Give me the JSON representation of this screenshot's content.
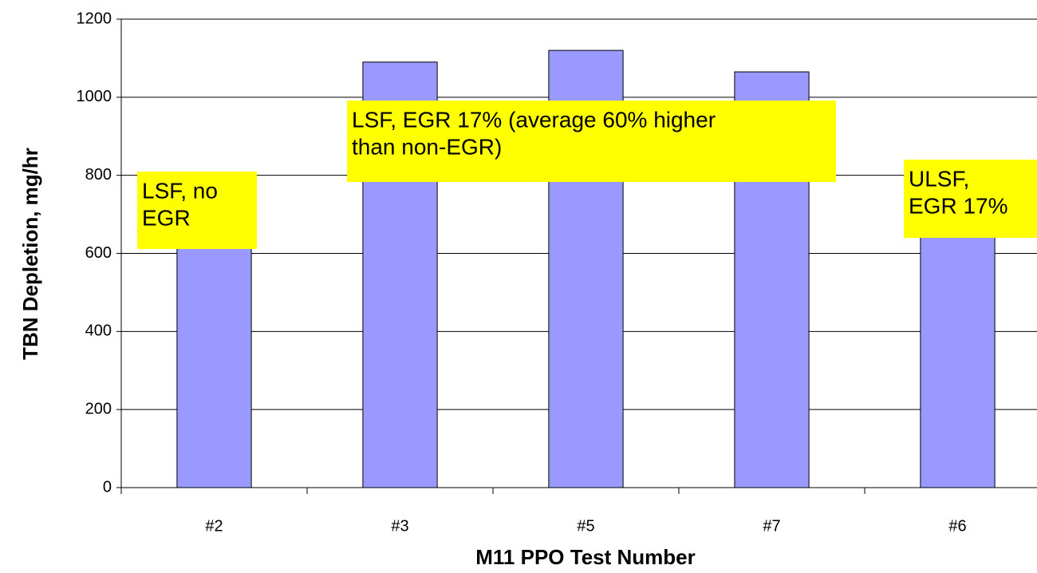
{
  "chart_data": {
    "type": "bar",
    "categories": [
      "#2",
      "#3",
      "#5",
      "#7",
      "#6"
    ],
    "values": [
      650,
      1090,
      1120,
      1065,
      650
    ],
    "color": "#9999ff",
    "x_label": "M11 PPO Test Number",
    "y_label": "TBN Depletion, mg/hr",
    "ylim": [
      0,
      1200
    ],
    "yticks": [
      0,
      200,
      400,
      600,
      800,
      1000,
      1200
    ],
    "grid": true,
    "annotations": [
      {
        "lines": [
          "LSF, no",
          "EGR"
        ]
      },
      {
        "lines": [
          "LSF, EGR 17% (average 60% higher",
          "than non-EGR)"
        ]
      },
      {
        "lines": [
          "ULSF,",
          "EGR 17%"
        ]
      }
    ]
  }
}
